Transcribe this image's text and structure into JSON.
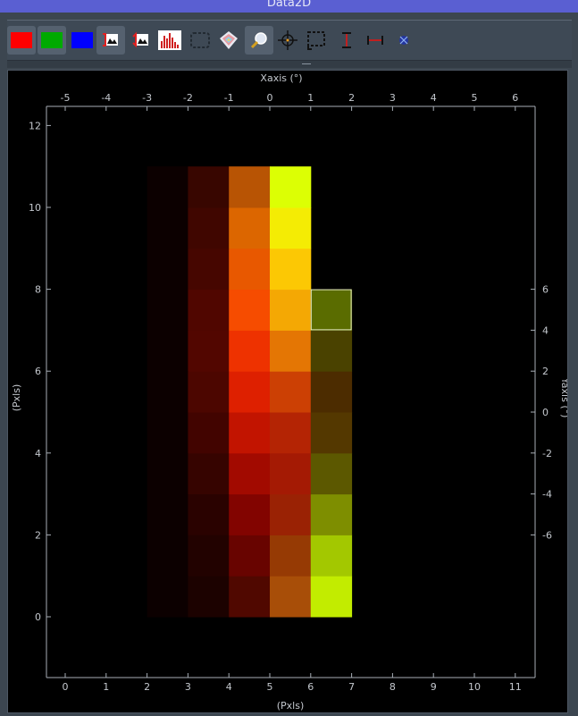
{
  "window": {
    "title": "Data2D"
  },
  "toolbar": {
    "buttons": [
      {
        "name": "red-channel-button",
        "icon": "red-swatch",
        "color": "#ff0000",
        "active": true
      },
      {
        "name": "green-channel-button",
        "icon": "green-swatch",
        "color": "#00aa00",
        "active": true
      },
      {
        "name": "blue-channel-button",
        "icon": "blue-swatch",
        "color": "#0000ff",
        "active": false
      },
      {
        "name": "autoscale-button",
        "icon": "autoscale-icon",
        "active": true
      },
      {
        "name": "rescale-button",
        "icon": "rescale-icon",
        "active": false
      },
      {
        "name": "histogram-button",
        "icon": "histogram-icon",
        "active": false
      },
      {
        "name": "roi-select-button",
        "icon": "roi-select-icon",
        "active": false
      },
      {
        "name": "isocurve-button",
        "icon": "isocurve-icon",
        "active": false
      },
      {
        "name": "zoom-button",
        "icon": "zoom-icon",
        "active": true
      },
      {
        "name": "crosshair-button",
        "icon": "crosshair-icon",
        "active": false
      },
      {
        "name": "aspect-ratio-button",
        "icon": "aspect-ratio-icon",
        "active": false
      },
      {
        "name": "vertical-line-button",
        "icon": "vertical-line-icon",
        "active": false
      },
      {
        "name": "horizontal-line-button",
        "icon": "horizontal-line-icon",
        "active": false
      },
      {
        "name": "scatter-button",
        "icon": "scatter-icon",
        "active": false
      }
    ]
  },
  "chart_data": {
    "type": "heatmap",
    "top_axis_label": "Xaxis (°)",
    "bottom_axis_label": "(Pxls)",
    "left_axis_label": "(Pxls)",
    "right_axis_label": "Yaxis (°)",
    "bottom_ticks": [
      "0",
      "1",
      "2",
      "3",
      "4",
      "5",
      "6",
      "7",
      "8",
      "9",
      "10",
      "11"
    ],
    "top_ticks": [
      "-5",
      "-4",
      "-3",
      "-2",
      "-1",
      "0",
      "1",
      "2",
      "3",
      "4",
      "5",
      "6"
    ],
    "left_ticks": [
      "0",
      "2",
      "4",
      "6",
      "8",
      "10",
      "12"
    ],
    "right_ticks": [
      "-6",
      "-4",
      "-2",
      "0",
      "2",
      "4",
      "6"
    ],
    "x_range": [
      -0.7,
      11.5
    ],
    "y_range": [
      -1.5,
      12.5
    ],
    "pixel_columns": [
      2,
      3,
      4,
      5,
      6
    ],
    "pixel_rows": [
      0,
      1,
      2,
      3,
      4,
      5,
      6,
      7,
      8,
      9,
      10
    ],
    "cell_colors_by_row_from_bottom": [
      [
        "#0c0000",
        "#1c0200",
        "#500800",
        "#a84e08",
        "#c2ec00"
      ],
      [
        "#0c0000",
        "#220200",
        "#680400",
        "#963a04",
        "#a3c800"
      ],
      [
        "#0c0000",
        "#2a0200",
        "#820400",
        "#9a2204",
        "#7e8e00"
      ],
      [
        "#0c0000",
        "#360400",
        "#a20a00",
        "#a41a04",
        "#5c5800"
      ],
      [
        "#0c0000",
        "#420400",
        "#c21400",
        "#b42404",
        "#543800"
      ],
      [
        "#0c0000",
        "#4c0600",
        "#de2000",
        "#cc4004",
        "#4c2c00"
      ],
      [
        "#0c0000",
        "#520600",
        "#ee3200",
        "#e47604",
        "#4a4200"
      ],
      [
        "#0c0000",
        "#500600",
        "#f64c00",
        "#f4a804",
        "#5a6c00"
      ],
      [
        "#0c0000",
        "#460600",
        "#e85800",
        "#fcc804",
        null
      ],
      [
        "#0c0000",
        "#400600",
        "#dc6600",
        "#f4ec04",
        null
      ],
      [
        "#0c0000",
        "#380600",
        "#b85404",
        "#dcff04",
        null
      ]
    ],
    "selected_cell": {
      "column": 6,
      "row": 7
    },
    "grid": false
  }
}
